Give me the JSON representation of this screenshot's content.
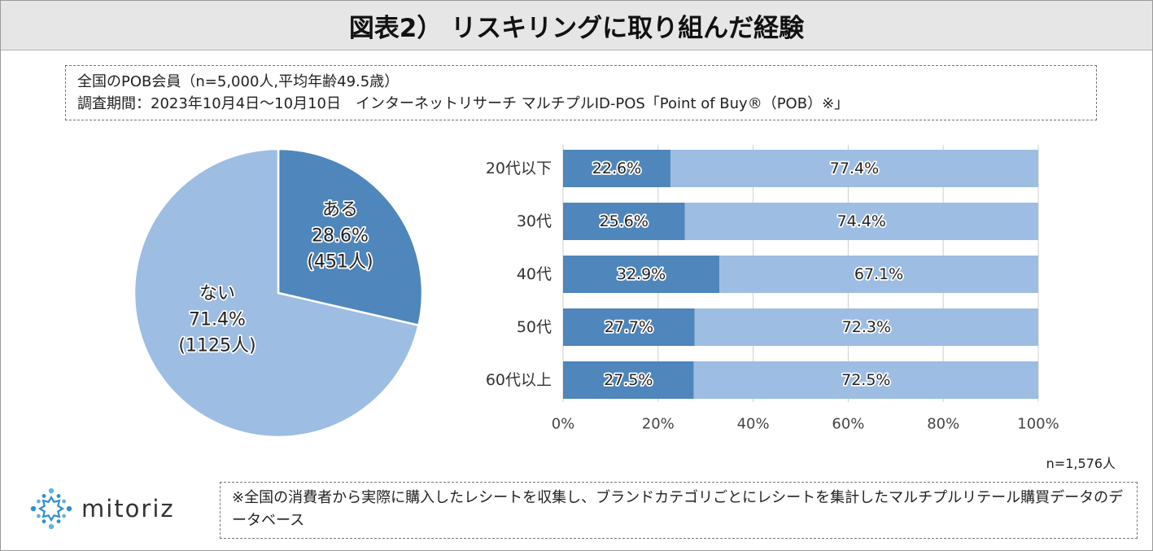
{
  "title": "図表2） リスキリングに取り組んだ経験",
  "info": {
    "line1": "全国のPOB会員（n=5,000人,平均年齢49.5歳）",
    "line2": "調査期間：2023年10月4日～10月10日　インターネットリサーチ マルチプルID-POS「Point of Buy®（POB）※」"
  },
  "n_label": "n=1,576人",
  "note": "※全国の消費者から実際に購入したレシートを収集し、ブランドカテゴリごとにレシートを集計したマルチプルリテール購買データのデータベース",
  "logo": {
    "text": "mitoriz",
    "icon": "sun-burst-logo-icon"
  },
  "colors": {
    "dark": "#4f86bb",
    "light": "#9dbde2",
    "grid": "#cfcfcf"
  },
  "chart_data": [
    {
      "type": "pie",
      "title": "",
      "slices": [
        {
          "label": "ある",
          "percent": "28.6%",
          "count": "(451人)",
          "value": 28.6,
          "color": "#4f86bb"
        },
        {
          "label": "ない",
          "percent": "71.4%",
          "count": "(1125人)",
          "value": 71.4,
          "color": "#9dbde2"
        }
      ]
    },
    {
      "type": "bar",
      "orientation": "horizontal",
      "stacked": true,
      "categories": [
        "20代以下",
        "30代",
        "40代",
        "50代",
        "60代以上"
      ],
      "series": [
        {
          "name": "ある",
          "values": [
            22.6,
            25.6,
            32.9,
            27.7,
            27.5
          ],
          "color": "#4f86bb"
        },
        {
          "name": "ない",
          "values": [
            77.4,
            74.4,
            67.1,
            72.3,
            72.5
          ],
          "color": "#9dbde2"
        }
      ],
      "xlim": [
        0,
        100
      ],
      "x_ticks": [
        "0%",
        "20%",
        "40%",
        "60%",
        "80%",
        "100%"
      ],
      "grid": true
    }
  ]
}
